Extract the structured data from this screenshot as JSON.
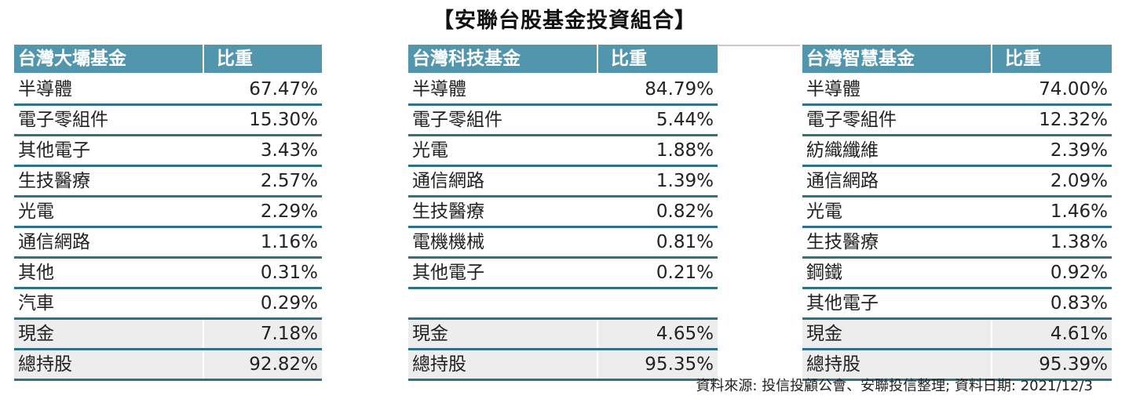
{
  "title": "【安聯台股基金投資組合】",
  "tables": [
    {
      "header": {
        "name": "台灣大壩基金",
        "weight": "比重"
      },
      "rows": [
        {
          "name": "半導體",
          "weight": "67.47%"
        },
        {
          "name": "電子零組件",
          "weight": "15.30%"
        },
        {
          "name": "其他電子",
          "weight": "3.43%"
        },
        {
          "name": "生技醫療",
          "weight": "2.57%"
        },
        {
          "name": "光電",
          "weight": "2.29%"
        },
        {
          "name": "通信網路",
          "weight": "1.16%"
        },
        {
          "name": "其他",
          "weight": "0.31%"
        },
        {
          "name": "汽車",
          "weight": "0.29%"
        }
      ],
      "cash": {
        "name": "現金",
        "weight": "7.18%"
      },
      "total": {
        "name": "總持股",
        "weight": "92.82%"
      }
    },
    {
      "header": {
        "name": "台灣科技基金",
        "weight": "比重"
      },
      "rows": [
        {
          "name": "半導體",
          "weight": "84.79%"
        },
        {
          "name": "電子零組件",
          "weight": "5.44%"
        },
        {
          "name": "光電",
          "weight": "1.88%"
        },
        {
          "name": "通信網路",
          "weight": "1.39%"
        },
        {
          "name": "生技醫療",
          "weight": "0.82%"
        },
        {
          "name": "電機機械",
          "weight": "0.81%"
        },
        {
          "name": "其他電子",
          "weight": "0.21%"
        },
        {
          "name": "",
          "weight": ""
        }
      ],
      "cash": {
        "name": "現金",
        "weight": "4.65%"
      },
      "total": {
        "name": "總持股",
        "weight": "95.35%"
      }
    },
    {
      "header": {
        "name": "台灣智慧基金",
        "weight": "比重"
      },
      "rows": [
        {
          "name": "半導體",
          "weight": "74.00%"
        },
        {
          "name": "電子零組件",
          "weight": "12.32%"
        },
        {
          "name": "紡織纖維",
          "weight": "2.39%"
        },
        {
          "name": "通信網路",
          "weight": "2.09%"
        },
        {
          "name": "光電",
          "weight": "1.46%"
        },
        {
          "name": "生技醫療",
          "weight": "1.38%"
        },
        {
          "name": "鋼鐵",
          "weight": "0.92%"
        },
        {
          "name": "其他電子",
          "weight": "0.83%"
        }
      ],
      "cash": {
        "name": "現金",
        "weight": "4.61%"
      },
      "total": {
        "name": "總持股",
        "weight": "95.39%"
      }
    }
  ],
  "source": "資料來源: 投信投顧公會、安聯投信整理; 資料日期:  2021/12/3",
  "colors": {
    "header_bg": "#5196ac",
    "rule": "#2f7287",
    "summary_bg": "#ededed"
  }
}
